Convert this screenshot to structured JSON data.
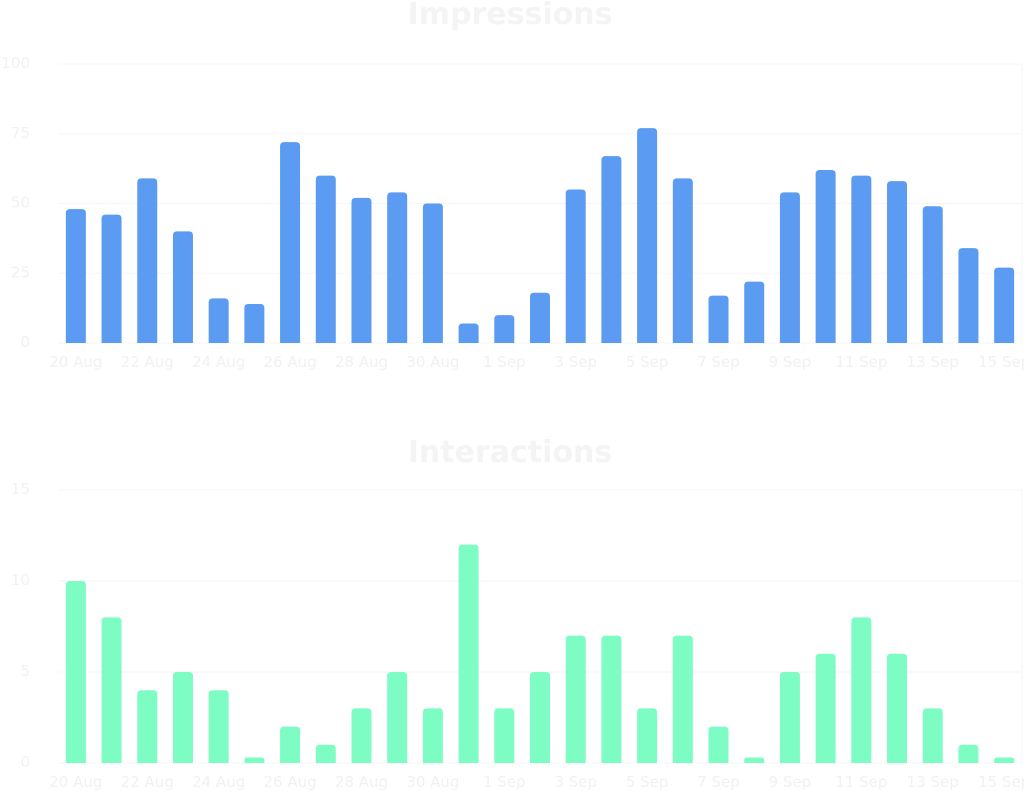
{
  "chart_data": [
    {
      "type": "bar",
      "title": "Impressions",
      "color": "#5b9bf1",
      "ylim": [
        0,
        100
      ],
      "yticks": [
        "100",
        "75",
        "50",
        "25",
        "0"
      ],
      "categories": [
        "20 Aug",
        "21 Aug",
        "22 Aug",
        "23 Aug",
        "24 Aug",
        "25 Aug",
        "26 Aug",
        "27 Aug",
        "28 Aug",
        "29 Aug",
        "30 Aug",
        "31 Aug",
        "1 Sep",
        "2 Sep",
        "3 Sep",
        "4 Sep",
        "5 Sep",
        "6 Sep",
        "7 Sep",
        "8 Sep",
        "9 Sep",
        "10 Sep",
        "11 Sep",
        "12 Sep",
        "13 Sep",
        "14 Sep",
        "15 Sep"
      ],
      "xtick_labels": [
        "20 Aug",
        "22 Aug",
        "24 Aug",
        "26 Aug",
        "28 Aug",
        "30 Aug",
        "1 Sep",
        "3 Sep",
        "5 Sep",
        "7 Sep",
        "9 Sep",
        "11 Sep",
        "13 Sep",
        "15 Sep"
      ],
      "values": [
        48,
        46,
        59,
        40,
        16,
        14,
        72,
        60,
        52,
        54,
        50,
        7,
        10,
        18,
        55,
        67,
        77,
        59,
        17,
        22,
        54,
        62,
        60,
        58,
        49,
        34,
        27
      ],
      "grid": true
    },
    {
      "type": "bar",
      "title": "Interactions",
      "color": "#7dfcc4",
      "ylim": [
        0,
        15
      ],
      "yticks": [
        "15",
        "10",
        "5",
        "0"
      ],
      "categories": [
        "20 Aug",
        "21 Aug",
        "22 Aug",
        "23 Aug",
        "24 Aug",
        "25 Aug",
        "26 Aug",
        "27 Aug",
        "28 Aug",
        "29 Aug",
        "30 Aug",
        "31 Aug",
        "1 Sep",
        "2 Sep",
        "3 Sep",
        "4 Sep",
        "5 Sep",
        "6 Sep",
        "7 Sep",
        "8 Sep",
        "9 Sep",
        "10 Sep",
        "11 Sep",
        "12 Sep",
        "13 Sep",
        "14 Sep",
        "15 Sep"
      ],
      "xtick_labels": [
        "20 Aug",
        "22 Aug",
        "24 Aug",
        "26 Aug",
        "28 Aug",
        "30 Aug",
        "1 Sep",
        "3 Sep",
        "5 Sep",
        "7 Sep",
        "9 Sep",
        "11 Sep",
        "13 Sep",
        "15 Sep"
      ],
      "values": [
        10,
        8,
        4,
        5,
        4,
        0.3,
        2,
        1,
        3,
        5,
        3,
        12,
        3,
        5,
        7,
        7,
        3,
        7,
        2,
        0.3,
        5,
        6,
        8,
        6,
        3,
        1,
        0.3
      ],
      "grid": true
    }
  ]
}
